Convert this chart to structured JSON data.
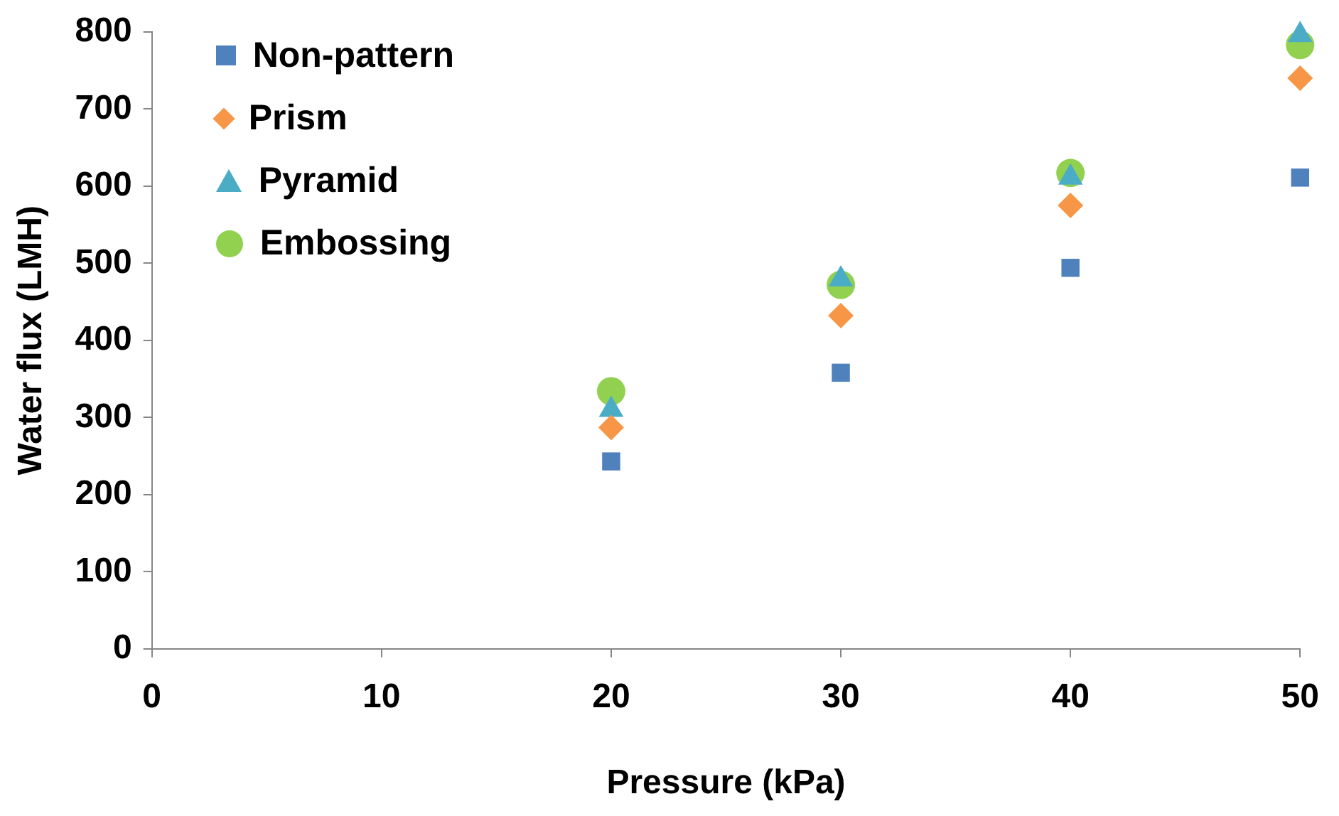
{
  "chart_data": {
    "type": "scatter",
    "xlabel": "Pressure (kPa)",
    "ylabel": "Water flux (LMH)",
    "xlim": [
      0,
      50
    ],
    "xticks": [
      0,
      10,
      20,
      30,
      40,
      50
    ],
    "ylim": [
      0,
      800
    ],
    "yticks": [
      0,
      100,
      200,
      300,
      400,
      500,
      600,
      700,
      800
    ],
    "grid": false,
    "legend": "top left",
    "series": [
      {
        "name": "Non-pattern",
        "color": "#4f81bd",
        "marker": "square",
        "x": [
          20,
          30,
          40,
          50
        ],
        "values": [
          243,
          358,
          494,
          611
        ]
      },
      {
        "name": "Prism",
        "color": "#f79646",
        "marker": "diamond",
        "x": [
          20,
          30,
          40,
          50
        ],
        "values": [
          287,
          432,
          575,
          740
        ]
      },
      {
        "name": "Pyramid",
        "color": "#4bacc6",
        "marker": "triangle",
        "x": [
          20,
          30,
          40,
          50
        ],
        "values": [
          310,
          479,
          611,
          796
        ]
      },
      {
        "name": "Embossing",
        "color": "#92d050",
        "marker": "circle",
        "x": [
          20,
          30,
          40,
          50
        ],
        "values": [
          334,
          472,
          617,
          783
        ]
      }
    ]
  }
}
